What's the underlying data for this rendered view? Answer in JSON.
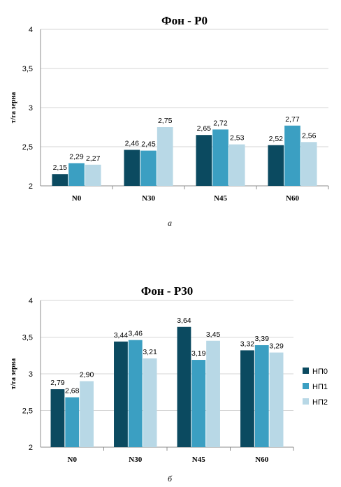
{
  "colors": {
    "НП0": "#0b4a60",
    "НП1": "#3b9fc2",
    "НП2": "#b8d8e6",
    "grid": "#d6d6d6",
    "axis": "#8c8c8c"
  },
  "chart_data": [
    {
      "type": "bar",
      "title": "Фон  - Р0",
      "ylabel": "т/га  зерна",
      "xlabel": "",
      "ylim": [
        2,
        4
      ],
      "yticks": [
        "2",
        "2,5",
        "3",
        "3,5",
        "4"
      ],
      "grid": true,
      "legend": "none",
      "categories": [
        "N0",
        "N30",
        "N45",
        "N60"
      ],
      "series": [
        {
          "name": "НП0",
          "values": [
            2.15,
            2.46,
            2.65,
            2.52
          ],
          "labels": [
            "2,15",
            "2,46",
            "2,65",
            "2,52"
          ]
        },
        {
          "name": "НП1",
          "values": [
            2.29,
            2.45,
            2.72,
            2.77
          ],
          "labels": [
            "2,29",
            "2,45",
            "2,72",
            "2,77"
          ]
        },
        {
          "name": "НП2",
          "values": [
            2.27,
            2.75,
            2.53,
            2.56
          ],
          "labels": [
            "2,27",
            "2,75",
            "2,53",
            "2,56"
          ]
        }
      ],
      "caption": "а"
    },
    {
      "type": "bar",
      "title": "Фон - Р30",
      "ylabel": "т/га  зерна",
      "xlabel": "",
      "ylim": [
        2,
        4
      ],
      "yticks": [
        "2",
        "2,5",
        "3",
        "3,5",
        "4"
      ],
      "grid": true,
      "legend": "right",
      "categories": [
        "N0",
        "N30",
        "N45",
        "N60"
      ],
      "series": [
        {
          "name": "НП0",
          "values": [
            2.79,
            3.44,
            3.64,
            3.32
          ],
          "labels": [
            "2,79",
            "3,44",
            "3,64",
            "3,32"
          ]
        },
        {
          "name": "НП1",
          "values": [
            2.68,
            3.46,
            3.19,
            3.39
          ],
          "labels": [
            "2,68",
            "3,46",
            "3,19",
            "3,39"
          ]
        },
        {
          "name": "НП2",
          "values": [
            2.9,
            3.21,
            3.45,
            3.29
          ],
          "labels": [
            "2,90",
            "3,21",
            "3,45",
            "3,29"
          ]
        }
      ],
      "caption": "б"
    }
  ]
}
